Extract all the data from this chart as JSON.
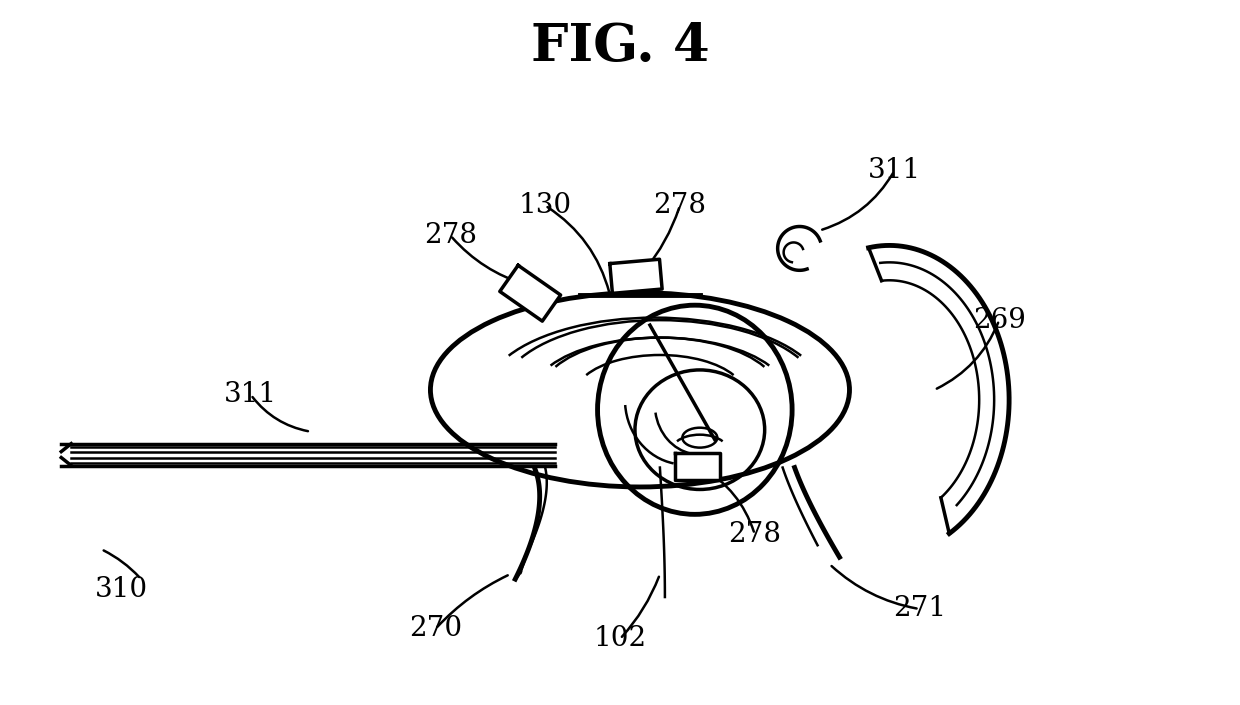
{
  "title": "FIG. 4",
  "title_fontsize": 38,
  "title_fontweight": "bold",
  "bg_color": "#ffffff",
  "line_color": "#000000",
  "figsize": [
    12.4,
    7.05
  ],
  "dpi": 100
}
